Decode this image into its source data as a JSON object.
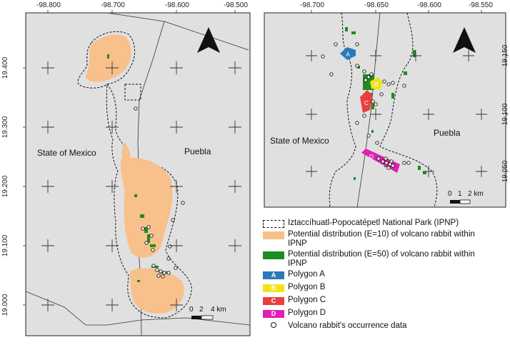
{
  "left_map": {
    "x_ticks": [
      "-98.800",
      "-98.700",
      "-98.600",
      "-98.500"
    ],
    "y_ticks": [
      "19.400",
      "19.300",
      "19.200",
      "19.100",
      "19.000"
    ],
    "region_left": "State of Mexico",
    "region_right": "Puebla",
    "scale_labels": [
      "0",
      "2",
      "4 km"
    ]
  },
  "right_map": {
    "x_ticks": [
      "-98.700",
      "-98.650",
      "-98.600",
      "-98.550"
    ],
    "y_ticks": [
      "19.150",
      "19.100",
      "19.050"
    ],
    "region_left": "State of Mexico",
    "region_right": "Puebla",
    "scale_labels": [
      "0",
      "1",
      "2 km"
    ],
    "polygon_letters": [
      "A",
      "B",
      "C",
      "D"
    ]
  },
  "colors": {
    "park_fill": "#e0e0e0",
    "e10": "#f8c08a",
    "e50": "#1f8c1f",
    "polygon_a": "#2a7ab9",
    "polygon_b": "#f2e21c",
    "polygon_c": "#e8403f",
    "polygon_d": "#e020b0"
  },
  "legend": [
    {
      "label": "Iztaccíhuatl-Popocatépetl National Park (IPNP)",
      "type": "dashed"
    },
    {
      "label": "Potential distribution (E=10) of volcano rabbit within IPNP",
      "type": "e10"
    },
    {
      "label": "Potential distribution (E=50) of volcano rabbit within IPNP",
      "type": "e50"
    },
    {
      "label": "Polygon A",
      "letter": "A",
      "type": "polygon_a"
    },
    {
      "label": "Polygon B",
      "letter": "B",
      "type": "polygon_b"
    },
    {
      "label": "Polygon C",
      "letter": "C",
      "type": "polygon_c"
    },
    {
      "label": "Polygon D",
      "letter": "D",
      "type": "polygon_d"
    },
    {
      "label": "Volcano rabbit's occurrence data",
      "type": "circle"
    }
  ]
}
